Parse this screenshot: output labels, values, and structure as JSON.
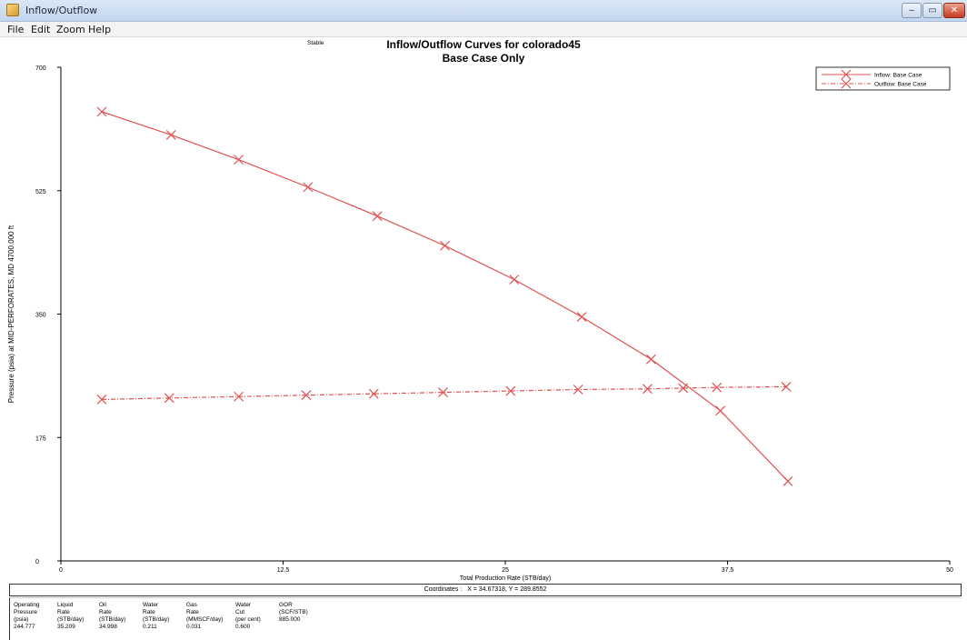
{
  "window": {
    "title": "Inflow/Outflow",
    "minimize_glyph": "‒",
    "maximize_glyph": "▭",
    "close_glyph": "✕"
  },
  "menu": [
    "File",
    "Edit",
    "Zoom",
    "Help"
  ],
  "chart_data": {
    "type": "line",
    "title": "Inflow/Outflow Curves for colorado45",
    "subtitle": "Base Case Only",
    "xlabel": "Total Production Rate (STB/day)",
    "ylabel": "Pressure (psia) at MID-PERFORATES, MD 4700.000 ft",
    "xlim": [
      0,
      50
    ],
    "ylim": [
      0,
      700
    ],
    "x_ticks": [
      "0",
      "12.5",
      "25",
      "37.5",
      "50"
    ],
    "x_tick_values": [
      0,
      12.5,
      25,
      37.5,
      50
    ],
    "y_ticks": [
      "0",
      "175",
      "350",
      "525",
      "700"
    ],
    "y_tick_values": [
      0,
      175,
      350,
      525,
      700
    ],
    "grid": false,
    "legend_position": "top-right",
    "series": [
      {
        "name": "Inflow: Base Case",
        "style": "solid",
        "color": "#e05050",
        "marker": "x",
        "points": [
          [
            2.3,
            637
          ],
          [
            6.2,
            604
          ],
          [
            10.0,
            569
          ],
          [
            13.9,
            530
          ],
          [
            17.8,
            489
          ],
          [
            21.6,
            447
          ],
          [
            25.5,
            399
          ],
          [
            29.3,
            346
          ],
          [
            33.2,
            286
          ],
          [
            37.1,
            213
          ],
          [
            40.9,
            113
          ]
        ]
      },
      {
        "name": "Outflow: Base Case",
        "style": "dashdot",
        "color": "#e05050",
        "marker": "x",
        "points": [
          [
            2.3,
            229
          ],
          [
            6.1,
            231
          ],
          [
            10.0,
            233
          ],
          [
            13.8,
            235
          ],
          [
            17.6,
            237
          ],
          [
            21.5,
            239
          ],
          [
            25.3,
            241
          ],
          [
            29.1,
            243
          ],
          [
            33.0,
            244
          ],
          [
            35.0,
            245
          ],
          [
            36.9,
            246
          ],
          [
            40.8,
            247
          ]
        ]
      }
    ]
  },
  "coordinates": {
    "label": "Coordinates",
    "text": "X = 34.67318,  Y = 289.8552"
  },
  "results": {
    "columns": [
      {
        "lines": [
          "Operating",
          "Pressure",
          "(psia)"
        ],
        "value": "244.777"
      },
      {
        "lines": [
          "Liquid",
          "Rate",
          "(STB/day)"
        ],
        "value": "35.209"
      },
      {
        "lines": [
          "Oil",
          "Rate",
          "(STB/day)"
        ],
        "value": "34.998"
      },
      {
        "lines": [
          "Water",
          "Rate",
          "(STB/day)"
        ],
        "value": "0.211"
      },
      {
        "lines": [
          "Gas",
          "Rate",
          "(MMSCF/day)"
        ],
        "value": "0.031"
      },
      {
        "lines": [
          "Water",
          "Cut",
          "(per cent)"
        ],
        "value": "0.600"
      },
      {
        "lines": [
          "",
          "GOR",
          "(SCF/STB)"
        ],
        "value": "885.000"
      }
    ],
    "status": "Stable"
  }
}
